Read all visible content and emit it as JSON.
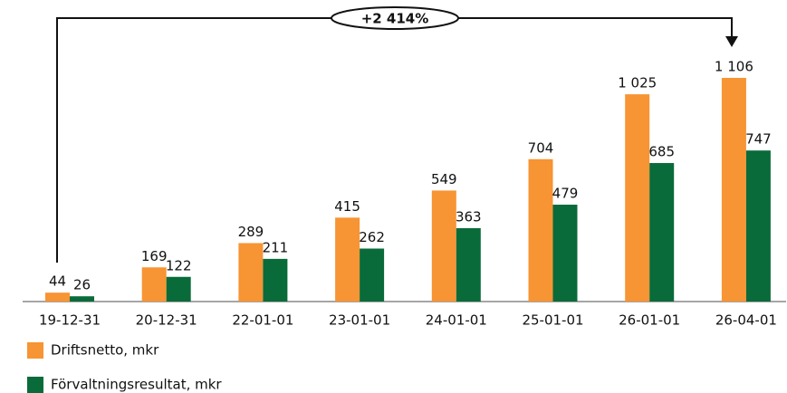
{
  "chart_data": {
    "type": "bar",
    "annotation": "+2 414%",
    "categories": [
      "19-12-31",
      "20-12-31",
      "22-01-01",
      "23-01-01",
      "24-01-01",
      "25-01-01",
      "26-01-01",
      "26-04-01"
    ],
    "series": [
      {
        "name": "Driftsnetto, mkr",
        "color": "#f79433",
        "values": [
          44,
          169,
          289,
          415,
          549,
          704,
          1025,
          1106
        ],
        "value_labels": [
          "44",
          "169",
          "289",
          "415",
          "549",
          "704",
          "1 025",
          "1 106"
        ]
      },
      {
        "name": "Förvaltningsresultat, mkr",
        "color": "#0a6b3a",
        "values": [
          26,
          122,
          211,
          262,
          363,
          479,
          685,
          747
        ],
        "value_labels": [
          "26",
          "122",
          "211",
          "262",
          "363",
          "479",
          "685",
          "747"
        ]
      }
    ]
  }
}
